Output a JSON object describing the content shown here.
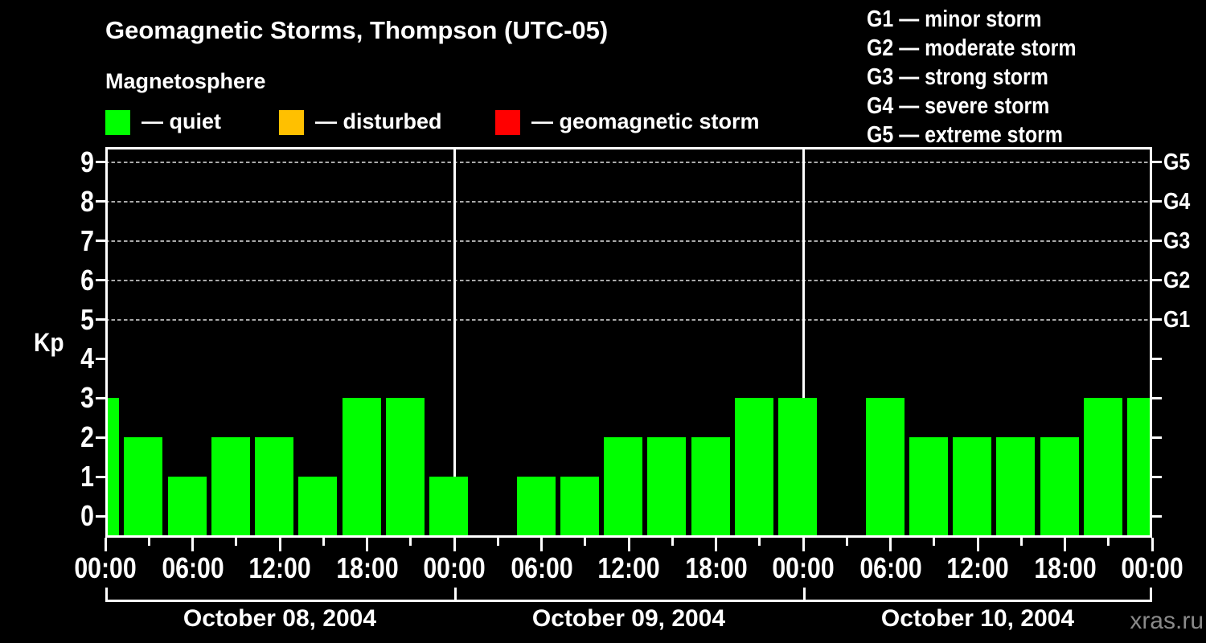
{
  "title": "Geomagnetic Storms, Thompson (UTC-05)",
  "subtitle": "Magnetosphere",
  "condition_legend": [
    {
      "label": "quiet",
      "color": "#00ff00"
    },
    {
      "label": "disturbed",
      "color": "#ffc000"
    },
    {
      "label": "geomagnetic storm",
      "color": "#ff0000"
    }
  ],
  "storm_scale_legend": [
    {
      "code": "G1",
      "label": "minor storm"
    },
    {
      "code": "G2",
      "label": "moderate storm"
    },
    {
      "code": "G3",
      "label": "strong storm"
    },
    {
      "code": "G4",
      "label": "severe storm"
    },
    {
      "code": "G5",
      "label": "extreme storm"
    }
  ],
  "watermark": "xras.ru",
  "chart_data": {
    "type": "bar",
    "title": "Geomagnetic Storms, Thompson (UTC-05)",
    "ylabel": "Kp",
    "ylim": [
      0,
      9
    ],
    "yticks": [
      0,
      1,
      2,
      3,
      4,
      5,
      6,
      7,
      8,
      9
    ],
    "right_axis_labels": [
      {
        "label": "G5",
        "kp": 9
      },
      {
        "label": "G4",
        "kp": 8
      },
      {
        "label": "G3",
        "kp": 7
      },
      {
        "label": "G2",
        "kp": 6
      },
      {
        "label": "G1",
        "kp": 5
      }
    ],
    "gridlines_kp": [
      5,
      6,
      7,
      8,
      9
    ],
    "grid": "dashed horizontal lines at storm levels only",
    "hours_per_value": 3,
    "x_tick_interval_hours": 3,
    "x_label_interval_hours": 6,
    "x_time_labels": [
      "00:00",
      "06:00",
      "12:00",
      "18:00"
    ],
    "bar_color": "#00ff00",
    "axis_color": "#ffffff",
    "days": [
      {
        "date": "October 08, 2004",
        "kp": [
          3,
          2,
          1,
          2,
          2,
          1,
          3,
          3
        ]
      },
      {
        "date": "October 09, 2004",
        "kp": [
          1,
          null,
          1,
          1,
          2,
          2,
          2,
          3
        ]
      },
      {
        "date": "October 10, 2004",
        "kp": [
          3,
          null,
          3,
          2,
          2,
          2,
          2,
          3
        ]
      }
    ],
    "next_day_leading_kp": 3
  }
}
